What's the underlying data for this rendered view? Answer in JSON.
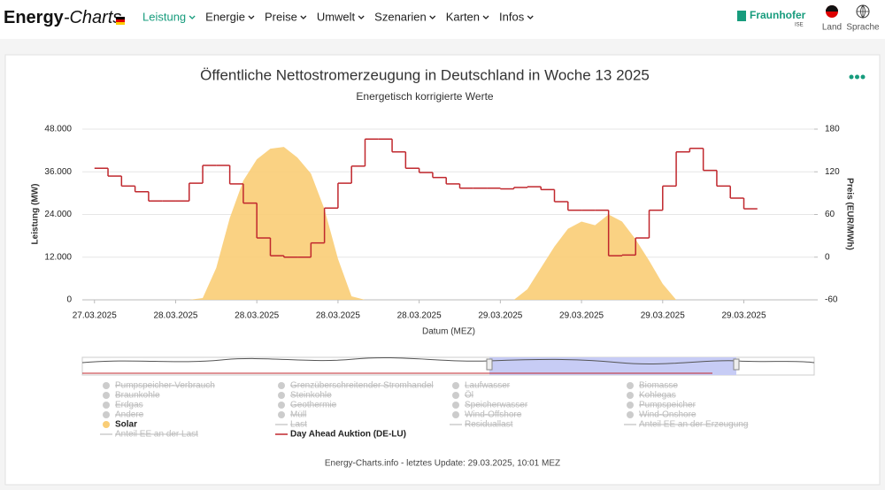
{
  "nav": {
    "logo": {
      "part1": "Energy",
      "part2": "-Charts"
    },
    "menu": [
      "Leistung",
      "Energie",
      "Preise",
      "Umwelt",
      "Szenarien",
      "Karten",
      "Infos"
    ],
    "brand": "Fraunhofer",
    "brand_sub": "ISE",
    "country": "Land",
    "language": "Sprache"
  },
  "chart_data": {
    "type": "line",
    "title": "Öffentliche Nettostromerzeugung in Deutschland in Woche 13 2025",
    "subtitle": "Energetisch korrigierte Werte",
    "xlabel": "Datum (MEZ)",
    "ylabel": "Leistung (MW)",
    "y2label": "Preis (EUR/MWh)",
    "x": [
      0,
      1,
      2,
      3,
      4,
      5,
      6,
      7,
      8,
      9,
      10,
      11,
      12,
      13,
      14,
      15,
      16,
      17,
      18,
      19,
      20,
      21,
      22,
      23,
      24,
      25,
      26,
      27,
      28,
      29,
      30,
      31,
      32,
      33,
      34,
      35,
      36,
      37,
      38,
      39,
      40,
      41,
      42,
      43,
      44,
      45,
      46,
      47,
      48
    ],
    "xlim": [
      -0.9,
      53.2
    ],
    "xticks": [
      {
        "value": 0,
        "label": "27.03.2025"
      },
      {
        "value": 6,
        "label": "28.03.2025"
      },
      {
        "value": 12,
        "label": "28.03.2025"
      },
      {
        "value": 18,
        "label": "28.03.2025"
      },
      {
        "value": 24,
        "label": "28.03.2025"
      },
      {
        "value": 30,
        "label": "29.03.2025"
      },
      {
        "value": 36,
        "label": "29.03.2025"
      },
      {
        "value": 42,
        "label": "29.03.2025"
      },
      {
        "value": 48,
        "label": "29.03.2025"
      }
    ],
    "ylim": [
      0,
      48000
    ],
    "yticks": [
      0,
      {
        "value": 12000,
        "label": "12.000"
      },
      {
        "value": 24000,
        "label": "24.000"
      },
      {
        "value": 36000,
        "label": "36.000"
      },
      {
        "value": 48000,
        "label": "48.000"
      }
    ],
    "y2lim": [
      -60,
      180
    ],
    "y2ticks": [
      -60,
      0,
      60,
      120,
      180
    ],
    "grid": true,
    "series": [
      {
        "name": "Solar",
        "color": "#f9cd76",
        "kind": "area",
        "values": [
          0,
          0,
          0,
          0,
          0,
          0,
          0,
          0,
          500,
          9000,
          23000,
          33500,
          39500,
          42500,
          43000,
          40000,
          35500,
          25500,
          11500,
          1000,
          0,
          0,
          0,
          0,
          0,
          0,
          0,
          0,
          0,
          0,
          0,
          0,
          3000,
          9000,
          15000,
          20000,
          22000,
          21000,
          24000,
          22000,
          17000,
          11000,
          4500,
          0,
          0,
          0,
          0,
          0,
          0
        ]
      },
      {
        "name": "Day Ahead Auktion (DE-LU)",
        "color": "#c0272d",
        "kind": "step",
        "axis": "y2",
        "values": [
          125,
          114,
          100,
          92,
          79,
          79,
          79,
          104,
          129,
          129,
          103,
          76,
          27,
          2,
          0,
          0,
          20,
          69,
          104,
          128,
          166,
          166,
          148,
          125,
          119,
          112,
          103,
          97,
          97,
          97,
          96,
          98,
          99,
          95,
          78,
          66,
          66,
          66,
          2,
          3,
          27,
          66,
          100,
          148,
          153,
          122,
          100,
          83,
          68
        ]
      }
    ],
    "hidden_series": [
      {
        "name": "Pumpspeicher-Verbrauch",
        "marker": "circle"
      },
      {
        "name": "Grenzüberschreitender Stromhandel",
        "marker": "circle"
      },
      {
        "name": "Laufwasser",
        "marker": "circle"
      },
      {
        "name": "Biomasse",
        "marker": "circle"
      },
      {
        "name": "Braunkohle",
        "marker": "circle"
      },
      {
        "name": "Steinkohle",
        "marker": "circle"
      },
      {
        "name": "Öl",
        "marker": "circle"
      },
      {
        "name": "Kohlegas",
        "marker": "circle"
      },
      {
        "name": "Erdgas",
        "marker": "circle"
      },
      {
        "name": "Geothermie",
        "marker": "circle"
      },
      {
        "name": "Speicherwasser",
        "marker": "circle"
      },
      {
        "name": "Pumpspeicher",
        "marker": "circle"
      },
      {
        "name": "Andere",
        "marker": "circle"
      },
      {
        "name": "Müll",
        "marker": "circle"
      },
      {
        "name": "Wind-Offshore",
        "marker": "circle"
      },
      {
        "name": "Wind-Onshore",
        "marker": "circle"
      },
      {
        "name": "Last",
        "marker": "line"
      },
      {
        "name": "Residuallast",
        "marker": "line"
      },
      {
        "name": "Anteil EE an der Erzeugung",
        "marker": "line"
      },
      {
        "name": "Anteil EE an der Last",
        "marker": "line"
      }
    ]
  },
  "footer": "Energy-Charts.info - letztes Update: 29.03.2025, 10:01 MEZ"
}
